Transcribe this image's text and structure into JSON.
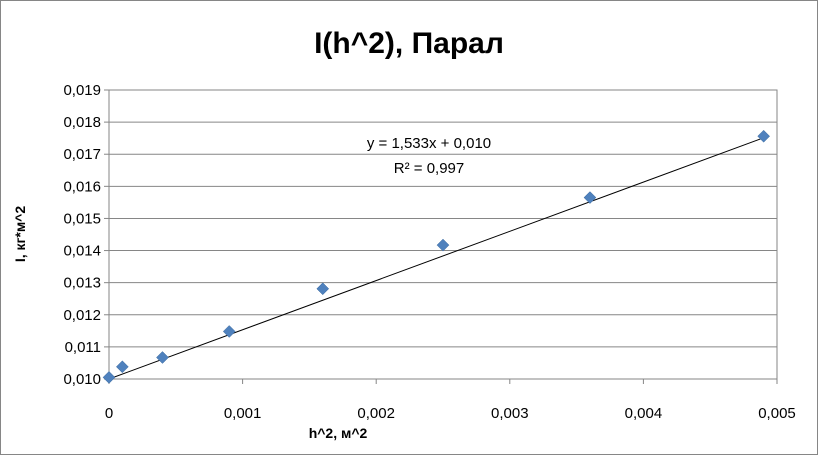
{
  "chart_data": {
    "type": "scatter",
    "title": "I(h^2), Парал",
    "xlabel": "h^2, м^2",
    "ylabel": "I, кг*м^2",
    "xlim": [
      0,
      0.005
    ],
    "ylim": [
      0.01,
      0.019
    ],
    "x_ticks": [
      "0",
      "0,001",
      "0,002",
      "0,003",
      "0,004",
      "0,005"
    ],
    "y_ticks": [
      "0,010",
      "0,011",
      "0,012",
      "0,013",
      "0,014",
      "0,015",
      "0,016",
      "0,017",
      "0,018",
      "0,019"
    ],
    "grid": "horizontal",
    "marker_color": "#4F81BD",
    "series": [
      {
        "x": [
          0,
          0.0001,
          0.0004,
          0.0009,
          0.0016,
          0.0025,
          0.0036,
          0.0049
        ],
        "y": [
          0.01005,
          0.01038,
          0.01067,
          0.01148,
          0.01281,
          0.01417,
          0.01565,
          0.01756
        ]
      }
    ],
    "trendline": {
      "slope": 1.533,
      "intercept": 0.01,
      "x_range": [
        0,
        0.0049
      ],
      "equation": "y = 1,533x + 0,010",
      "r_squared": "R² = 0,997"
    }
  }
}
